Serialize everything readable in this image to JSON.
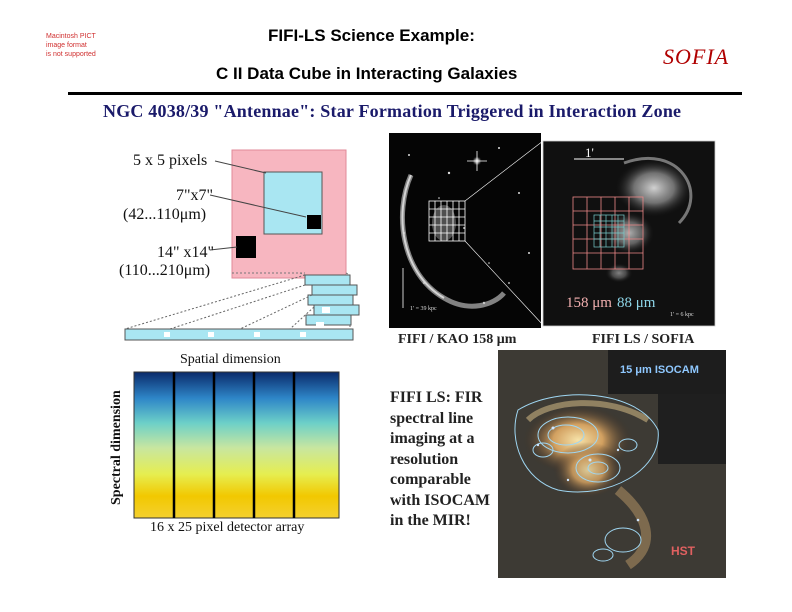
{
  "header": {
    "title_line1": "FIFI-LS Science Example:",
    "title_line2": "C II Data Cube in Interacting Galaxies",
    "sofia_logo": "SOFIA",
    "pict_placeholder": [
      "Macintosh PICT",
      "image format",
      "is not supported"
    ]
  },
  "slide": {
    "heading": "NGC 4038/39  \"Antennae\": Star Formation Triggered in Interaction Zone"
  },
  "diagram": {
    "label_pixels": "5 x 5 pixels",
    "label_small_size": "7\"x7\"",
    "label_small_range": "(42...110μm)",
    "label_large_size": "14\" x14\"",
    "label_large_range": "(110...210μm)",
    "label_spatial": "Spatial dimension",
    "label_spectral": "Spectral dimension",
    "label_detector": "16 x 25 pixel detector array"
  },
  "images": {
    "kao_label": "FIFI / KAO 158 μm",
    "ls_label": "FIFI LS / SOFIA",
    "scale_arcmin": "1'",
    "wavelength_158": "158 μm",
    "wavelength_88": "88 μm",
    "scale_left": "1' = 39 kpc",
    "scale_right": "1' = 6 kpc",
    "isocam_label": "15 μm ISOCAM",
    "hst_label": "HST"
  },
  "note": {
    "lines": [
      "FIFI LS: FIR",
      "spectral line",
      "imaging at a",
      "resolution",
      "comparable",
      "with ISOCAM",
      "in the MIR!"
    ]
  }
}
